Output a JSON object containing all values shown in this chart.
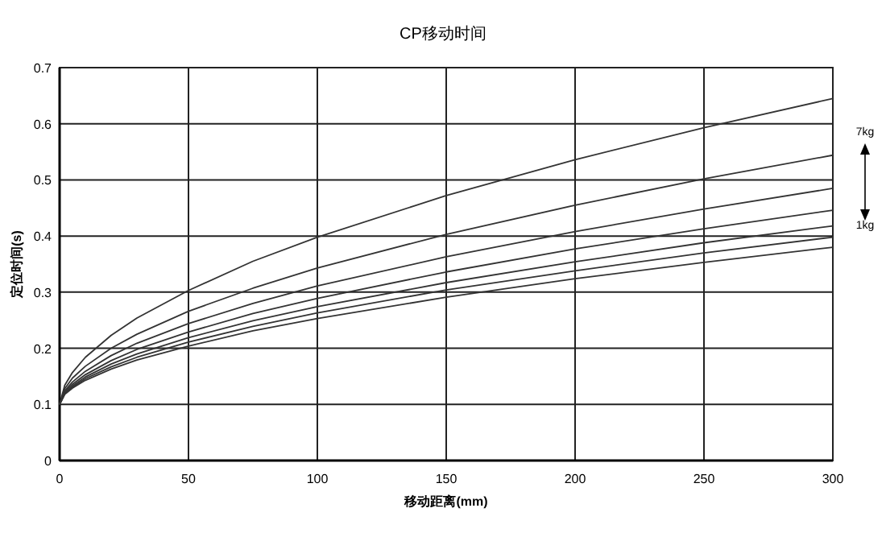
{
  "chart_data": {
    "type": "line",
    "title": "CP移动时间",
    "xlabel": "移动距离(mm)",
    "ylabel": "定位时间(s)",
    "x": [
      0,
      2,
      5,
      10,
      20,
      30,
      50,
      75,
      100,
      150,
      200,
      250,
      300
    ],
    "series": [
      {
        "color": "#333333",
        "values": [
          0.1,
          0.134,
          0.157,
          0.184,
          0.223,
          0.254,
          0.303,
          0.355,
          0.398,
          0.472,
          0.536,
          0.593,
          0.645
        ]
      },
      {
        "color": "#333333",
        "values": [
          0.1,
          0.128,
          0.147,
          0.168,
          0.2,
          0.225,
          0.266,
          0.307,
          0.343,
          0.403,
          0.455,
          0.502,
          0.544
        ]
      },
      {
        "color": "#333333",
        "values": [
          0.1,
          0.124,
          0.14,
          0.159,
          0.187,
          0.209,
          0.244,
          0.28,
          0.311,
          0.363,
          0.408,
          0.448,
          0.485
        ]
      },
      {
        "color": "#333333",
        "values": [
          0.1,
          0.122,
          0.136,
          0.153,
          0.178,
          0.198,
          0.229,
          0.262,
          0.289,
          0.336,
          0.377,
          0.413,
          0.446
        ]
      },
      {
        "color": "#333333",
        "values": [
          0.1,
          0.12,
          0.133,
          0.149,
          0.172,
          0.19,
          0.219,
          0.249,
          0.274,
          0.317,
          0.354,
          0.388,
          0.418
        ]
      },
      {
        "color": "#333333",
        "values": [
          0.1,
          0.119,
          0.131,
          0.146,
          0.167,
          0.184,
          0.211,
          0.239,
          0.263,
          0.304,
          0.338,
          0.37,
          0.398
        ]
      },
      {
        "color": "#333333",
        "values": [
          0.1,
          0.118,
          0.129,
          0.143,
          0.163,
          0.179,
          0.204,
          0.231,
          0.253,
          0.291,
          0.324,
          0.353,
          0.38
        ]
      }
    ],
    "annotations": [
      "7kg",
      "1kg"
    ],
    "xlim": [
      0,
      300
    ],
    "xticks": [
      0,
      50,
      100,
      150,
      200,
      250,
      300
    ],
    "ylim": [
      0,
      0.7
    ],
    "yticks": [
      0,
      0.1,
      0.2,
      0.3,
      0.4,
      0.5,
      0.6,
      0.7
    ],
    "grid": true,
    "marker": "none",
    "line_style": "solid"
  }
}
